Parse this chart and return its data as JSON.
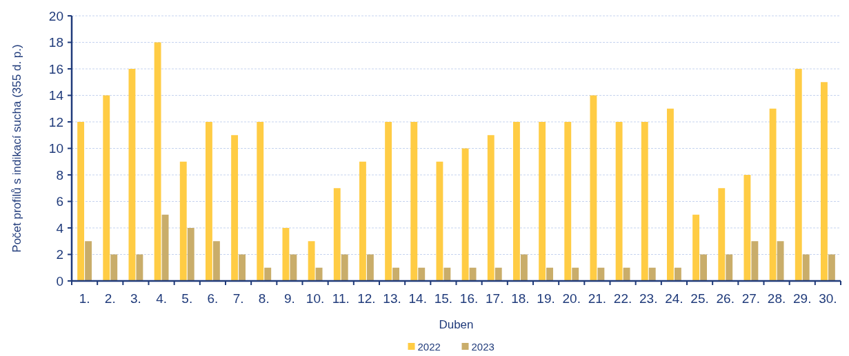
{
  "chart_data": {
    "type": "bar",
    "xlabel": "Duben",
    "ylabel": "Počet profilů s indikací sucha (355 d. p.)",
    "categories": [
      "1.",
      "2.",
      "3.",
      "4.",
      "5.",
      "6.",
      "7.",
      "8.",
      "9.",
      "10.",
      "11.",
      "12.",
      "13.",
      "14.",
      "15.",
      "16.",
      "17.",
      "18.",
      "19.",
      "20.",
      "21.",
      "22.",
      "23.",
      "24.",
      "25.",
      "26.",
      "27.",
      "28.",
      "29.",
      "30."
    ],
    "series": [
      {
        "name": "2022",
        "color": "#ffcc44",
        "values": [
          12,
          14,
          16,
          18,
          9,
          12,
          11,
          12,
          4,
          3,
          7,
          9,
          12,
          12,
          9,
          10,
          11,
          12,
          12,
          12,
          14,
          12,
          12,
          13,
          5,
          7,
          8,
          13,
          16,
          15
        ]
      },
      {
        "name": "2023",
        "color": "#c9ad6a",
        "values": [
          3,
          2,
          2,
          5,
          4,
          3,
          2,
          1,
          2,
          1,
          2,
          2,
          1,
          1,
          1,
          1,
          1,
          2,
          1,
          1,
          1,
          1,
          1,
          1,
          2,
          2,
          3,
          3,
          2,
          2
        ]
      }
    ],
    "ylim": [
      0,
      20
    ],
    "yticks": [
      0,
      2,
      4,
      6,
      8,
      10,
      12,
      14,
      16,
      18,
      20
    ],
    "grid": "y",
    "legend": "bottom"
  }
}
